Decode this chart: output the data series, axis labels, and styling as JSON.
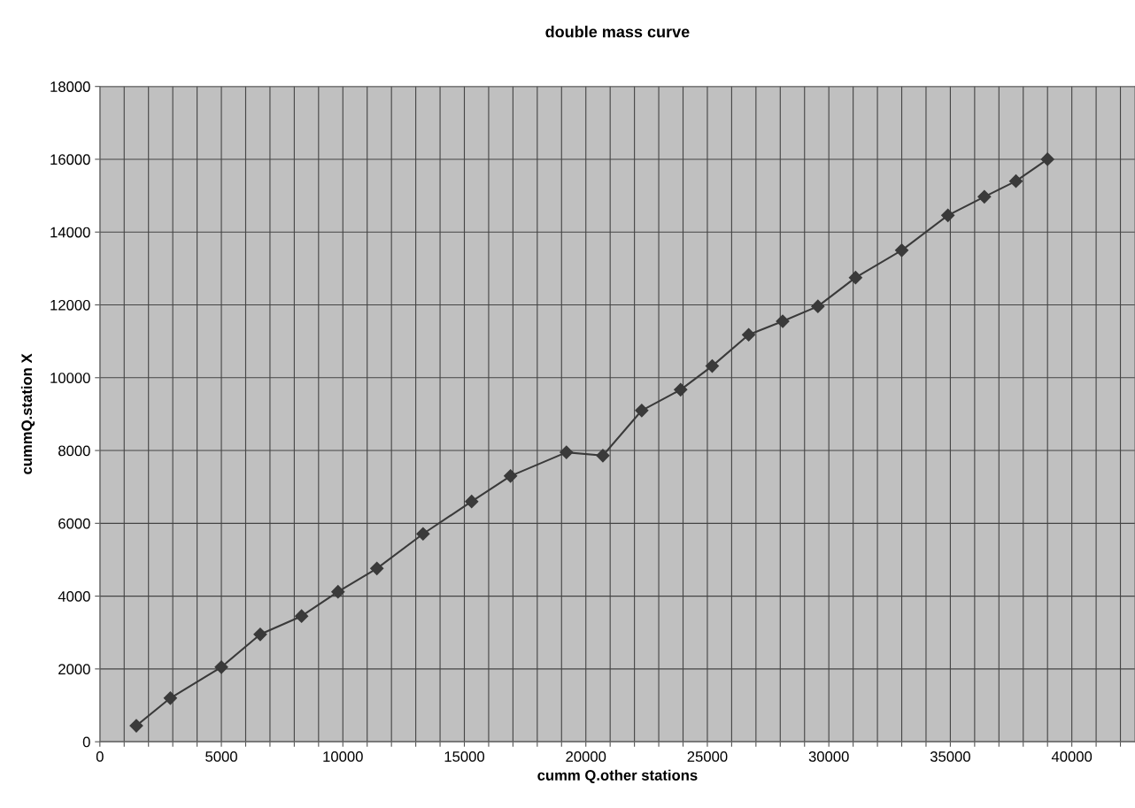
{
  "chart_data": {
    "type": "line",
    "title": "double mass curve",
    "xlabel": "cumm Q.other stations",
    "ylabel": "cummQ.station X",
    "x": [
      1500,
      2900,
      5000,
      6600,
      8300,
      9800,
      11400,
      13300,
      15300,
      16900,
      19200,
      20700,
      22300,
      23900,
      25200,
      26700,
      28100,
      29550,
      31100,
      33000,
      34900,
      36400,
      37700,
      39000
    ],
    "series": [
      {
        "color": "#3a3a3a",
        "values": [
          440,
          1200,
          2050,
          2950,
          3450,
          4120,
          4760,
          5710,
          6600,
          7300,
          7950,
          7860,
          9100,
          9670,
          10320,
          11180,
          11550,
          11960,
          12750,
          13500,
          14460,
          14970,
          15400,
          16000
        ]
      }
    ],
    "xlim": [
      0,
      42600
    ],
    "xticks": [
      0,
      {
        "value": 1000,
        "label": null
      },
      {
        "value": 2000,
        "label": null
      },
      {
        "value": 3000,
        "label": null
      },
      {
        "value": 4000,
        "label": null
      },
      5000,
      {
        "value": 6000,
        "label": null
      },
      {
        "value": 7000,
        "label": null
      },
      {
        "value": 8000,
        "label": null
      },
      {
        "value": 9000,
        "label": null
      },
      10000,
      {
        "value": 11000,
        "label": null
      },
      {
        "value": 12000,
        "label": null
      },
      {
        "value": 13000,
        "label": null
      },
      {
        "value": 14000,
        "label": null
      },
      15000,
      {
        "value": 16000,
        "label": null
      },
      {
        "value": 17000,
        "label": null
      },
      {
        "value": 18000,
        "label": null
      },
      {
        "value": 19000,
        "label": null
      },
      20000,
      {
        "value": 21000,
        "label": null
      },
      {
        "value": 22000,
        "label": null
      },
      {
        "value": 23000,
        "label": null
      },
      {
        "value": 24000,
        "label": null
      },
      25000,
      {
        "value": 26000,
        "label": null
      },
      {
        "value": 27000,
        "label": null
      },
      {
        "value": 28000,
        "label": null
      },
      {
        "value": 29000,
        "label": null
      },
      30000,
      {
        "value": 31000,
        "label": null
      },
      {
        "value": 32000,
        "label": null
      },
      {
        "value": 33000,
        "label": null
      },
      {
        "value": 34000,
        "label": null
      },
      35000,
      {
        "value": 36000,
        "label": null
      },
      {
        "value": 37000,
        "label": null
      },
      {
        "value": 38000,
        "label": null
      },
      {
        "value": 39000,
        "label": null
      },
      40000,
      {
        "value": 41000,
        "label": null
      },
      {
        "value": 42000,
        "label": null
      }
    ],
    "ylim": [
      0,
      18000
    ],
    "yticks": [
      0,
      2000,
      4000,
      6000,
      8000,
      10000,
      12000,
      14000,
      16000,
      18000
    ],
    "grid": true,
    "marker": "diamond",
    "line_style": "solid"
  }
}
